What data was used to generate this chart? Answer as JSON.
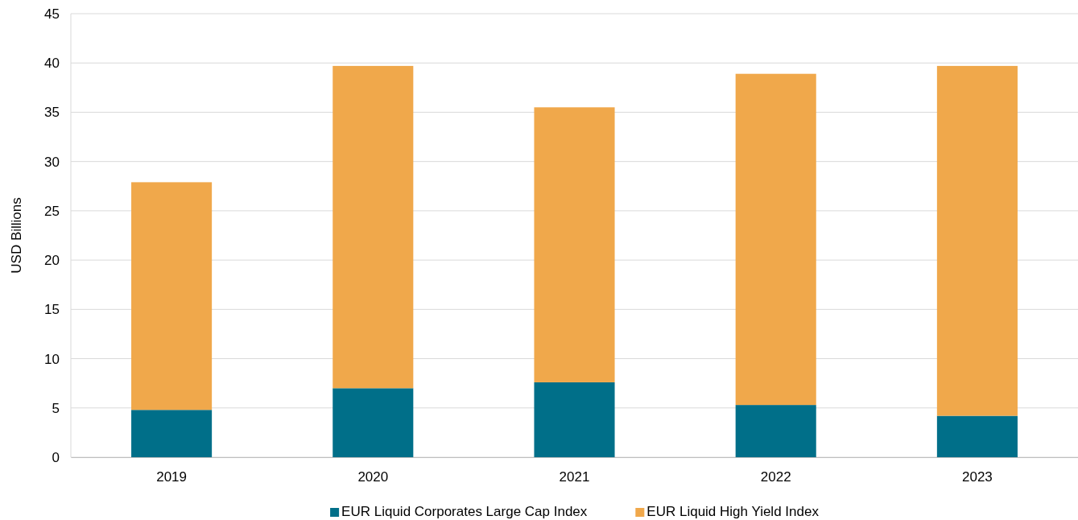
{
  "chart_data": {
    "type": "bar",
    "stacked": true,
    "ylabel": "USD Billions",
    "categories": [
      "2019",
      "2020",
      "2021",
      "2022",
      "2023"
    ],
    "series": [
      {
        "name": "EUR Liquid Corporates Large Cap Index",
        "color": "#006f89",
        "values": [
          4.8,
          7.0,
          7.6,
          5.3,
          4.2
        ]
      },
      {
        "name": "EUR Liquid High Yield Index",
        "color": "#f0a84b",
        "values": [
          23.1,
          32.7,
          27.9,
          33.6,
          35.5
        ]
      }
    ],
    "ylim": [
      0,
      45
    ],
    "yticks": [
      0,
      5,
      10,
      15,
      20,
      25,
      30,
      35,
      40,
      45
    ],
    "grid": "y",
    "legend": "bottom"
  }
}
